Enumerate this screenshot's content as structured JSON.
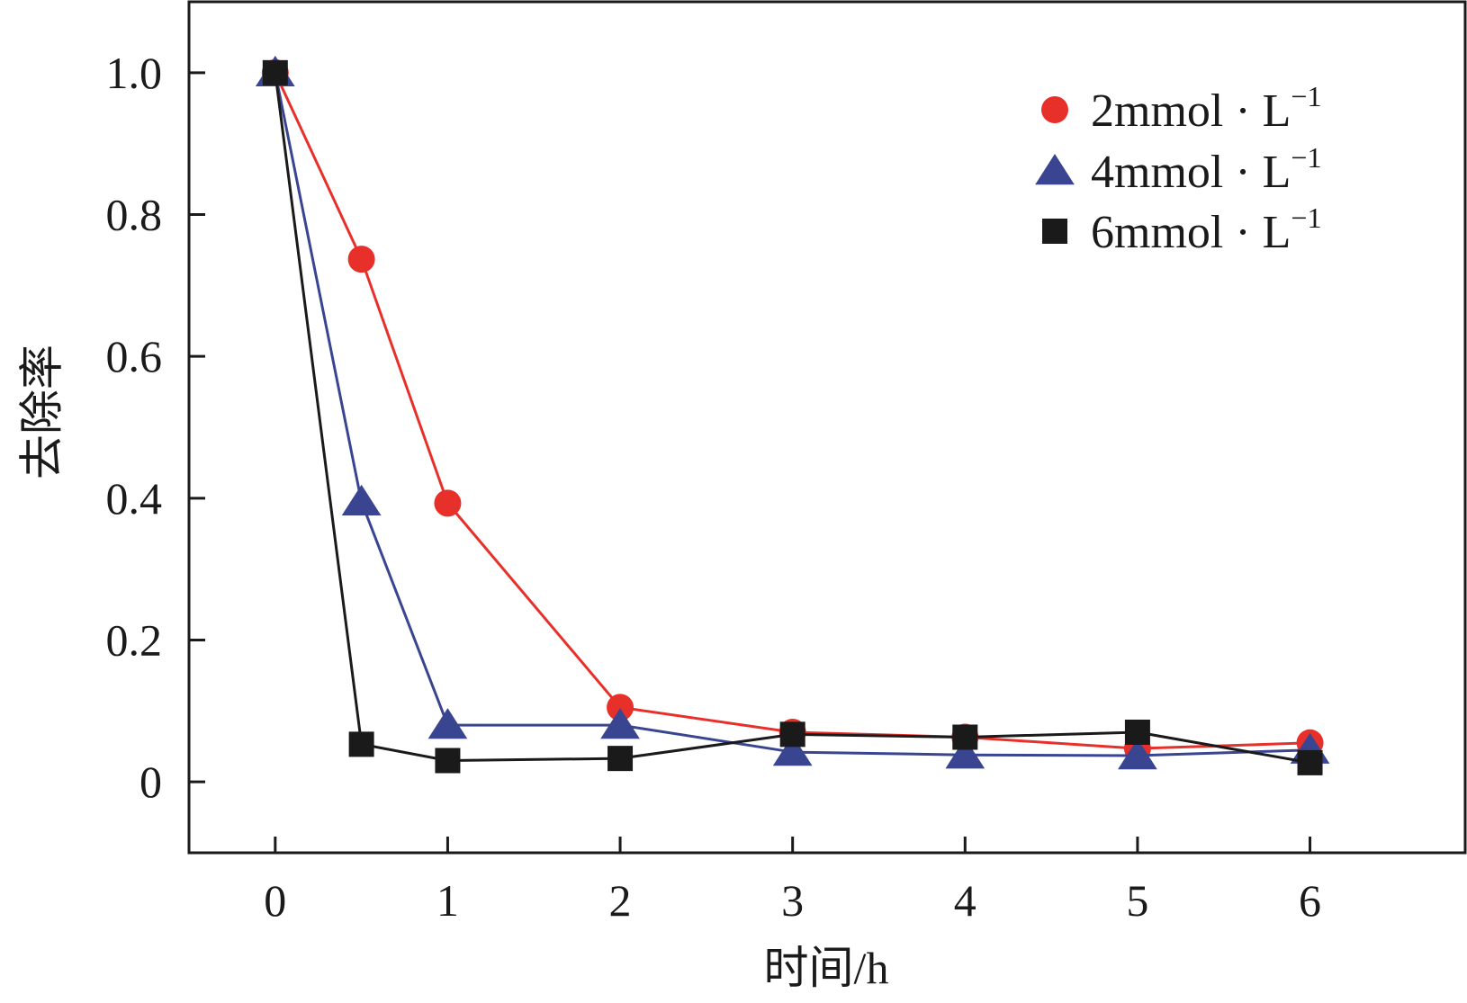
{
  "chart_data": {
    "type": "line",
    "xlabel": "时间/h",
    "ylabel": "去除率",
    "xlim": [
      -0.5,
      6.9
    ],
    "ylim": [
      -0.1,
      1.1
    ],
    "xticks": [
      0,
      1,
      2,
      3,
      4,
      5,
      6
    ],
    "yticks": [
      0,
      0.2,
      0.4,
      0.6,
      0.8,
      1.0
    ],
    "xtick_labels": [
      "0",
      "1",
      "2",
      "3",
      "4",
      "5",
      "6"
    ],
    "ytick_labels": [
      "0",
      "0.2",
      "0.4",
      "0.6",
      "0.8",
      "1.0"
    ],
    "grid": false,
    "legend_position": "top-right",
    "series": [
      {
        "name": "2mmol · L",
        "name_sup": "−1",
        "color": "#e8302b",
        "marker": "circle",
        "points": [
          [
            0,
            1.0
          ],
          [
            0.5,
            0.737
          ],
          [
            1,
            0.393
          ],
          [
            2,
            0.105
          ],
          [
            3,
            0.07
          ],
          [
            4,
            0.063
          ],
          [
            5,
            0.047
          ],
          [
            6,
            0.055
          ]
        ]
      },
      {
        "name": "4mmol · L",
        "name_sup": "−1",
        "color": "#3a4592",
        "marker": "triangle",
        "points": [
          [
            0,
            1.0
          ],
          [
            0.5,
            0.395
          ],
          [
            1,
            0.08
          ],
          [
            2,
            0.08
          ],
          [
            3,
            0.042
          ],
          [
            4,
            0.038
          ],
          [
            5,
            0.037
          ],
          [
            6,
            0.045
          ]
        ]
      },
      {
        "name": "6mmol · L",
        "name_sup": "−1",
        "color": "#1a1a1a",
        "marker": "square",
        "points": [
          [
            0,
            1.0
          ],
          [
            0.5,
            0.053
          ],
          [
            1,
            0.03
          ],
          [
            2,
            0.033
          ],
          [
            3,
            0.067
          ],
          [
            4,
            0.063
          ],
          [
            5,
            0.07
          ],
          [
            6,
            0.027
          ]
        ]
      }
    ]
  }
}
